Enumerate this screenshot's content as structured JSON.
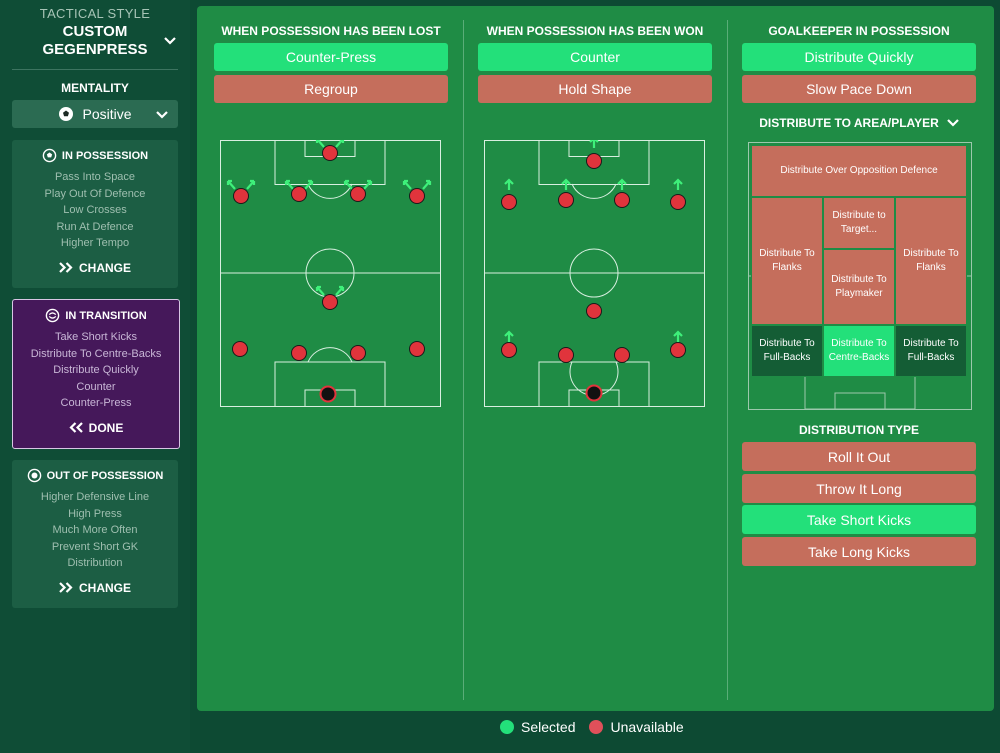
{
  "sidebar": {
    "tactical_style_label": "TACTICAL STYLE",
    "tactical_style_line1": "CUSTOM",
    "tactical_style_line2": "GEGENPRESS",
    "mentality_label": "MENTALITY",
    "mentality_value": "Positive",
    "panels": [
      {
        "title": "IN POSSESSION",
        "items": [
          "Pass Into Space",
          "Play Out Of Defence",
          "Low Crosses",
          "Run At Defence",
          "Higher Tempo"
        ],
        "button": "CHANGE"
      },
      {
        "title": "IN TRANSITION",
        "items": [
          "Take Short Kicks",
          "Distribute To Centre-Backs",
          "Distribute Quickly",
          "Counter",
          "Counter-Press"
        ],
        "button": "DONE"
      },
      {
        "title": "OUT OF POSSESSION",
        "items": [
          "Higher Defensive Line",
          "High Press",
          "Much More Often",
          "Prevent Short GK",
          "Distribution"
        ],
        "button": "CHANGE"
      }
    ]
  },
  "columns": [
    {
      "title": "WHEN POSSESSION HAS BEEN LOST",
      "options": [
        {
          "label": "Counter-Press",
          "state": "selected"
        },
        {
          "label": "Regroup",
          "state": "unavailable"
        }
      ]
    },
    {
      "title": "WHEN POSSESSION HAS BEEN WON",
      "options": [
        {
          "label": "Counter",
          "state": "selected"
        },
        {
          "label": "Hold Shape",
          "state": "unavailable"
        }
      ]
    },
    {
      "title": "GOALKEEPER IN POSSESSION",
      "options": [
        {
          "label": "Distribute Quickly",
          "state": "selected"
        },
        {
          "label": "Slow Pace Down",
          "state": "unavailable"
        }
      ]
    }
  ],
  "distribute_area": {
    "label": "DISTRIBUTE TO AREA/PLAYER",
    "cells": {
      "over_defence": "Distribute Over Opposition Defence",
      "target": "Distribute to Target...",
      "flanks_left": "Distribute To Flanks",
      "flanks_right": "Distribute To Flanks",
      "playmaker": "Distribute To Playmaker",
      "fullbacks_left": "Distribute To Full-Backs",
      "centre_backs": "Distribute To Centre-Backs",
      "fullbacks_right": "Distribute To Full-Backs"
    }
  },
  "distribution_type": {
    "label": "DISTRIBUTION TYPE",
    "options": [
      {
        "label": "Roll It Out",
        "state": "unavailable"
      },
      {
        "label": "Throw It Long",
        "state": "unavailable"
      },
      {
        "label": "Take Short Kicks",
        "state": "selected"
      },
      {
        "label": "Take Long Kicks",
        "state": "unavailable"
      }
    ]
  },
  "legend": {
    "selected": "Selected",
    "unavailable": "Unavailable"
  },
  "colors": {
    "selected": "#23e07a",
    "unavailable": "#c56e5c",
    "player": "#e0343c",
    "arrow": "#3ef07a",
    "pitch": "#1f8c45"
  }
}
